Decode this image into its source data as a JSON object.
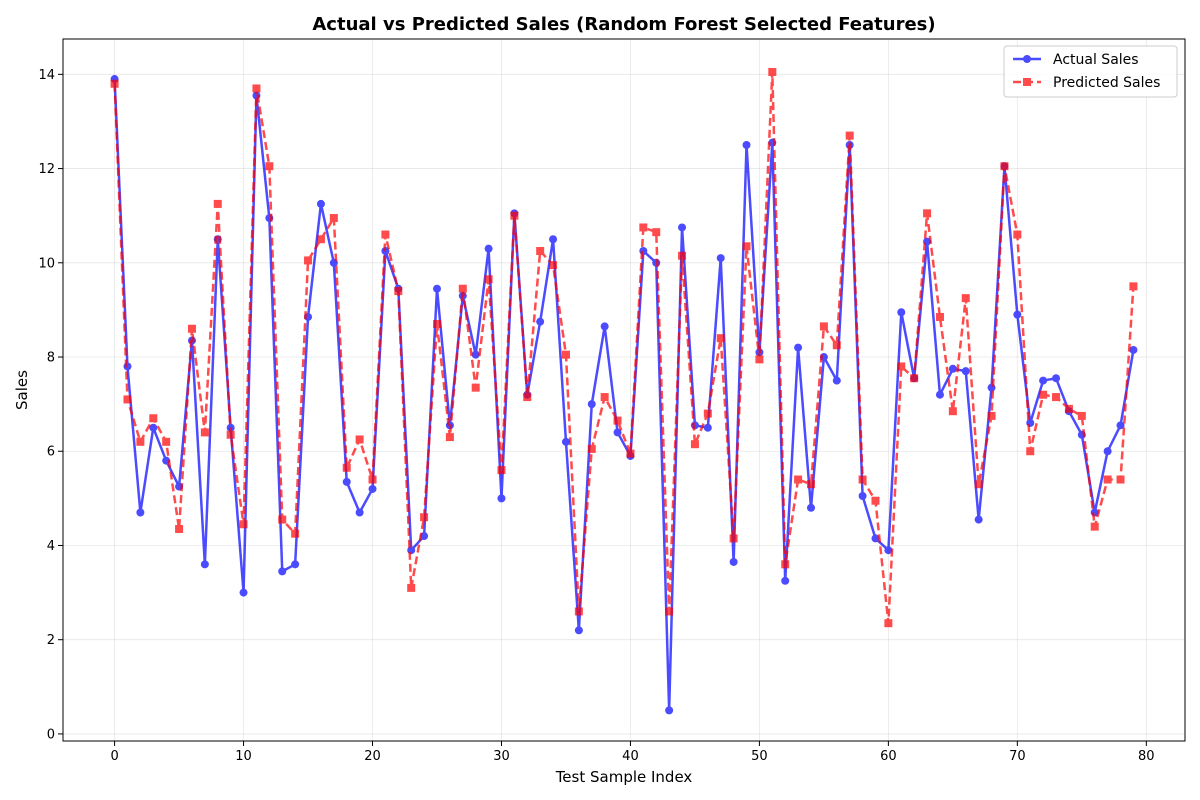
{
  "chart_data": {
    "type": "line",
    "title": "Actual vs Predicted Sales (Random Forest Selected Features)",
    "xlabel": "Test Sample Index",
    "ylabel": "Sales",
    "xlim": [
      -4,
      83
    ],
    "ylim": [
      -0.15,
      14.75
    ],
    "xticks": [
      0,
      10,
      20,
      30,
      40,
      50,
      60,
      70,
      80
    ],
    "yticks": [
      0,
      2,
      4,
      6,
      8,
      10,
      12,
      14
    ],
    "grid": true,
    "legend_position": "top-right",
    "x": [
      0,
      1,
      2,
      3,
      4,
      5,
      6,
      7,
      8,
      9,
      10,
      11,
      12,
      13,
      14,
      15,
      16,
      17,
      18,
      19,
      20,
      21,
      22,
      23,
      24,
      25,
      26,
      27,
      28,
      29,
      30,
      31,
      32,
      33,
      34,
      35,
      36,
      37,
      38,
      39,
      40,
      41,
      42,
      43,
      44,
      45,
      46,
      47,
      48,
      49,
      50,
      51,
      52,
      53,
      54,
      55,
      56,
      57,
      58,
      59,
      60,
      61,
      62,
      63,
      64,
      65,
      66,
      67,
      68,
      69,
      70,
      71,
      72,
      73,
      74,
      75,
      76,
      77,
      78,
      79
    ],
    "series": [
      {
        "name": "Actual Sales",
        "color": "#0000ff",
        "line_style": "solid",
        "marker": "circle",
        "values": [
          13.9,
          7.8,
          4.7,
          6.5,
          5.8,
          5.25,
          8.35,
          3.6,
          10.5,
          6.5,
          3.0,
          13.55,
          10.95,
          3.45,
          3.6,
          8.85,
          11.25,
          10.0,
          5.35,
          4.7,
          5.2,
          10.25,
          9.45,
          3.9,
          4.2,
          9.45,
          6.55,
          9.3,
          8.05,
          10.3,
          5.0,
          11.05,
          7.2,
          8.75,
          10.5,
          6.2,
          2.2,
          7.0,
          8.65,
          6.4,
          5.9,
          10.25,
          10.0,
          0.5,
          10.75,
          6.55,
          6.5,
          10.1,
          3.65,
          12.5,
          8.1,
          12.55,
          3.25,
          8.2,
          4.8,
          8.0,
          7.5,
          12.5,
          5.05,
          4.15,
          3.9,
          8.95,
          7.55,
          10.45,
          7.2,
          7.75,
          7.7,
          4.55,
          7.35,
          12.05,
          8.9,
          6.6,
          7.5,
          7.55,
          6.85,
          6.35,
          4.7,
          6.0,
          6.55,
          8.15
        ]
      },
      {
        "name": "Predicted Sales",
        "color": "#ff0000",
        "line_style": "dashed",
        "marker": "square",
        "values": [
          13.8,
          7.1,
          6.2,
          6.7,
          6.2,
          4.35,
          8.6,
          6.4,
          11.25,
          6.35,
          4.45,
          13.7,
          12.05,
          4.55,
          4.25,
          10.05,
          10.5,
          10.95,
          5.65,
          6.25,
          5.4,
          10.6,
          9.4,
          3.1,
          4.6,
          8.7,
          6.3,
          9.45,
          7.35,
          9.65,
          5.6,
          11.0,
          7.15,
          10.25,
          9.95,
          8.05,
          2.6,
          6.05,
          7.15,
          6.65,
          5.95,
          10.75,
          10.65,
          2.6,
          10.15,
          6.15,
          6.8,
          8.4,
          4.15,
          10.35,
          7.95,
          14.05,
          3.6,
          5.4,
          5.3,
          8.65,
          8.25,
          12.7,
          5.4,
          4.95,
          2.35,
          7.8,
          7.55,
          11.05,
          8.85,
          6.85,
          9.25,
          5.3,
          6.75,
          12.05,
          10.6,
          6.0,
          7.2,
          7.15,
          6.9,
          6.75,
          4.4,
          5.4,
          5.4,
          9.5
        ]
      }
    ]
  }
}
